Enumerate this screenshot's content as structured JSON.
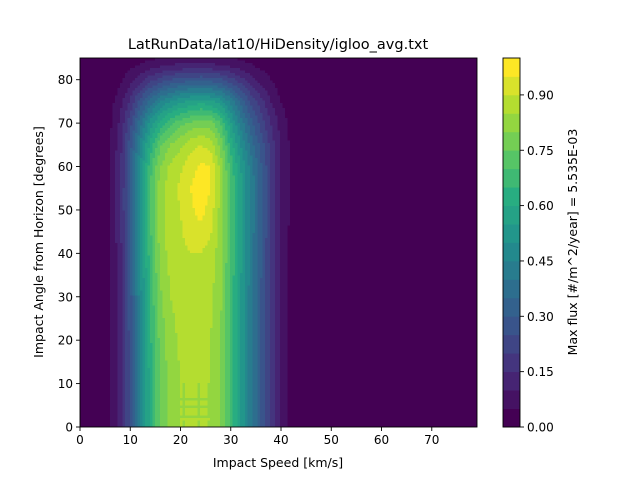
{
  "chart_data": {
    "type": "heatmap",
    "subtype": "filled-contour",
    "title": "LatRunData/lat10/HiDensity/igloo_avg.txt",
    "xlabel": "Impact Speed [km/s]",
    "ylabel": "Impact Angle from Horizon [degrees]",
    "xlim": [
      0,
      79
    ],
    "ylim": [
      0,
      85
    ],
    "xticks": [
      "0",
      "10",
      "20",
      "30",
      "40",
      "50",
      "60",
      "70"
    ],
    "yticks": [
      "0",
      "10",
      "20",
      "30",
      "40",
      "50",
      "60",
      "70",
      "80"
    ],
    "colorbar": {
      "label": "Max flux [#/m^2/year] = 5.535E-03",
      "ticks": [
        "0.00",
        "0.15",
        "0.30",
        "0.45",
        "0.60",
        "0.75",
        "0.90"
      ],
      "range": [
        0,
        1.0
      ],
      "levels": 20,
      "colormap": "viridis"
    },
    "description_grid": {
      "x": [
        0,
        4,
        6,
        8,
        10,
        12,
        14,
        16,
        18,
        20,
        22,
        24,
        26,
        28,
        30,
        32,
        34,
        36,
        38,
        40,
        42,
        43.5,
        45,
        79
      ],
      "y": [
        0,
        10,
        20,
        30,
        40,
        50,
        55,
        60,
        65,
        70,
        75,
        80,
        83,
        85
      ],
      "z": [
        [
          0.0,
          0.0,
          0.05,
          0.12,
          0.26,
          0.45,
          0.62,
          0.76,
          0.82,
          0.85,
          0.85,
          0.85,
          0.85,
          0.8,
          0.68,
          0.55,
          0.42,
          0.3,
          0.18,
          0.08,
          0.03,
          0.0,
          0.0,
          0.0
        ],
        [
          0.0,
          0.0,
          0.05,
          0.12,
          0.26,
          0.45,
          0.62,
          0.76,
          0.82,
          0.85,
          0.85,
          0.85,
          0.85,
          0.8,
          0.68,
          0.55,
          0.42,
          0.3,
          0.18,
          0.08,
          0.03,
          0.0,
          0.0,
          0.0
        ],
        [
          0.0,
          0.0,
          0.05,
          0.12,
          0.27,
          0.46,
          0.64,
          0.77,
          0.83,
          0.86,
          0.86,
          0.86,
          0.85,
          0.8,
          0.68,
          0.55,
          0.42,
          0.3,
          0.18,
          0.08,
          0.03,
          0.0,
          0.0,
          0.0
        ],
        [
          0.0,
          0.0,
          0.05,
          0.13,
          0.28,
          0.48,
          0.66,
          0.79,
          0.85,
          0.87,
          0.86,
          0.87,
          0.86,
          0.81,
          0.68,
          0.55,
          0.42,
          0.3,
          0.18,
          0.08,
          0.03,
          0.0,
          0.0,
          0.0
        ],
        [
          0.0,
          0.0,
          0.05,
          0.13,
          0.3,
          0.5,
          0.68,
          0.82,
          0.87,
          0.89,
          0.9,
          0.9,
          0.88,
          0.82,
          0.7,
          0.56,
          0.43,
          0.31,
          0.19,
          0.09,
          0.03,
          0.0,
          0.0,
          0.0
        ],
        [
          0.0,
          0.0,
          0.05,
          0.14,
          0.31,
          0.52,
          0.7,
          0.83,
          0.88,
          0.9,
          0.94,
          0.97,
          0.93,
          0.83,
          0.7,
          0.57,
          0.44,
          0.32,
          0.2,
          0.1,
          0.04,
          0.0,
          0.0,
          0.0
        ],
        [
          0.0,
          0.0,
          0.05,
          0.14,
          0.31,
          0.52,
          0.7,
          0.83,
          0.88,
          0.91,
          0.95,
          0.98,
          0.95,
          0.84,
          0.7,
          0.57,
          0.44,
          0.32,
          0.2,
          0.1,
          0.04,
          0.0,
          0.0,
          0.0
        ],
        [
          0.0,
          0.0,
          0.05,
          0.14,
          0.3,
          0.5,
          0.68,
          0.8,
          0.86,
          0.89,
          0.93,
          0.96,
          0.95,
          0.83,
          0.68,
          0.55,
          0.43,
          0.31,
          0.2,
          0.1,
          0.04,
          0.0,
          0.0,
          0.0
        ],
        [
          0.0,
          0.0,
          0.05,
          0.13,
          0.28,
          0.46,
          0.62,
          0.74,
          0.8,
          0.84,
          0.88,
          0.9,
          0.88,
          0.78,
          0.63,
          0.5,
          0.38,
          0.28,
          0.18,
          0.09,
          0.04,
          0.0,
          0.0,
          0.0
        ],
        [
          0.0,
          0.0,
          0.04,
          0.11,
          0.23,
          0.38,
          0.52,
          0.62,
          0.69,
          0.73,
          0.76,
          0.78,
          0.77,
          0.7,
          0.56,
          0.43,
          0.32,
          0.23,
          0.15,
          0.08,
          0.03,
          0.0,
          0.0,
          0.0
        ],
        [
          0.0,
          0.0,
          0.03,
          0.08,
          0.16,
          0.27,
          0.37,
          0.45,
          0.5,
          0.54,
          0.56,
          0.58,
          0.56,
          0.52,
          0.43,
          0.33,
          0.24,
          0.17,
          0.1,
          0.05,
          0.02,
          0.0,
          0.0,
          0.0
        ],
        [
          0.0,
          0.0,
          0.01,
          0.04,
          0.08,
          0.13,
          0.18,
          0.22,
          0.25,
          0.27,
          0.28,
          0.29,
          0.28,
          0.26,
          0.22,
          0.17,
          0.12,
          0.08,
          0.05,
          0.02,
          0.01,
          0.0,
          0.0,
          0.0
        ],
        [
          0.0,
          0.0,
          0.0,
          0.02,
          0.04,
          0.06,
          0.08,
          0.1,
          0.11,
          0.12,
          0.12,
          0.12,
          0.12,
          0.11,
          0.1,
          0.08,
          0.06,
          0.04,
          0.03,
          0.01,
          0.0,
          0.0,
          0.0,
          0.0
        ],
        [
          0.0,
          0.0,
          0.0,
          0.01,
          0.02,
          0.03,
          0.04,
          0.05,
          0.06,
          0.06,
          0.06,
          0.06,
          0.06,
          0.06,
          0.05,
          0.04,
          0.03,
          0.02,
          0.01,
          0.01,
          0.0,
          0.0,
          0.0,
          0.0
        ]
      ]
    }
  }
}
